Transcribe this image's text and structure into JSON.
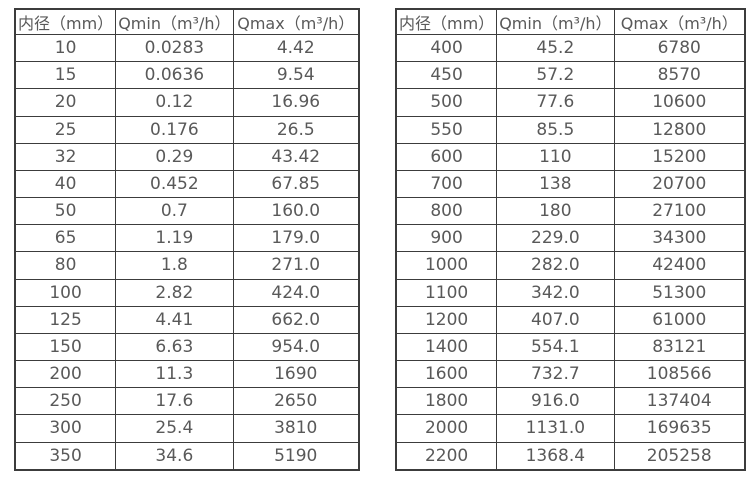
{
  "page": {
    "background": "#ffffff",
    "text_color": "#595959",
    "border_color": "#3c3c3c"
  },
  "headers": [
    "内径（mm）",
    "Qmin（m³/h）",
    "Qmax（m³/h）"
  ],
  "tables": [
    {
      "name": "diameter-flow-table-small",
      "rows": [
        [
          "10",
          "0.0283",
          "4.42"
        ],
        [
          "15",
          "0.0636",
          "9.54"
        ],
        [
          "20",
          "0.12",
          "16.96"
        ],
        [
          "25",
          "0.176",
          "26.5"
        ],
        [
          "32",
          "0.29",
          "43.42"
        ],
        [
          "40",
          "0.452",
          "67.85"
        ],
        [
          "50",
          "0.7",
          "160.0"
        ],
        [
          "65",
          "1.19",
          "179.0"
        ],
        [
          "80",
          "1.8",
          "271.0"
        ],
        [
          "100",
          "2.82",
          "424.0"
        ],
        [
          "125",
          "4.41",
          "662.0"
        ],
        [
          "150",
          "6.63",
          "954.0"
        ],
        [
          "200",
          "11.3",
          "1690"
        ],
        [
          "250",
          "17.6",
          "2650"
        ],
        [
          "300",
          "25.4",
          "3810"
        ],
        [
          "350",
          "34.6",
          "5190"
        ]
      ]
    },
    {
      "name": "diameter-flow-table-large",
      "rows": [
        [
          "400",
          "45.2",
          "6780"
        ],
        [
          "450",
          "57.2",
          "8570"
        ],
        [
          "500",
          "77.6",
          "10600"
        ],
        [
          "550",
          "85.5",
          "12800"
        ],
        [
          "600",
          "110",
          "15200"
        ],
        [
          "700",
          "138",
          "20700"
        ],
        [
          "800",
          "180",
          "27100"
        ],
        [
          "900",
          "229.0",
          "34300"
        ],
        [
          "1000",
          "282.0",
          "42400"
        ],
        [
          "1100",
          "342.0",
          "51300"
        ],
        [
          "1200",
          "407.0",
          "61000"
        ],
        [
          "1400",
          "554.1",
          "83121"
        ],
        [
          "1600",
          "732.7",
          "108566"
        ],
        [
          "1800",
          "916.0",
          "137404"
        ],
        [
          "2000",
          "1131.0",
          "169635"
        ],
        [
          "2200",
          "1368.4",
          "205258"
        ]
      ]
    }
  ]
}
